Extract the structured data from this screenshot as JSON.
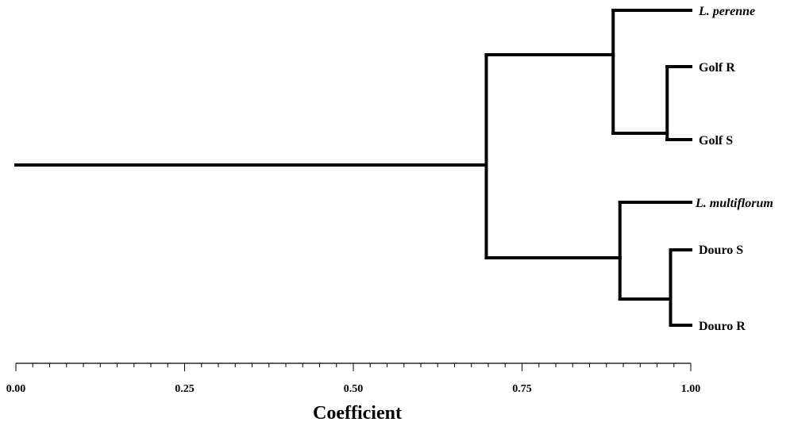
{
  "chart_data": {
    "type": "dendrogram",
    "xlabel": "Coefficient",
    "xlim": [
      0.0,
      1.0
    ],
    "ticks": [
      "0.00",
      "0.25",
      "0.50",
      "0.75",
      "1.00"
    ],
    "leaves": [
      {
        "label": "L. perenne",
        "italic": true
      },
      {
        "label": "Golf R",
        "italic": false
      },
      {
        "label": "Golf S",
        "italic": false
      },
      {
        "label": "L. multiflorum",
        "italic": true
      },
      {
        "label": "Douro S",
        "italic": false
      },
      {
        "label": "Douro R",
        "italic": false
      }
    ],
    "merges": [
      {
        "children": [
          "Golf R",
          "Golf S"
        ],
        "similarity": 0.965
      },
      {
        "children": [
          "L. perenne",
          "Golf R+Golf S"
        ],
        "similarity": 0.885
      },
      {
        "children": [
          "Douro S",
          "Douro R"
        ],
        "similarity": 0.97
      },
      {
        "children": [
          "L. multiflorum",
          "Douro S+Douro R"
        ],
        "similarity": 0.895
      },
      {
        "children": [
          "group 1",
          "group 2"
        ],
        "similarity": 0.697
      }
    ]
  }
}
